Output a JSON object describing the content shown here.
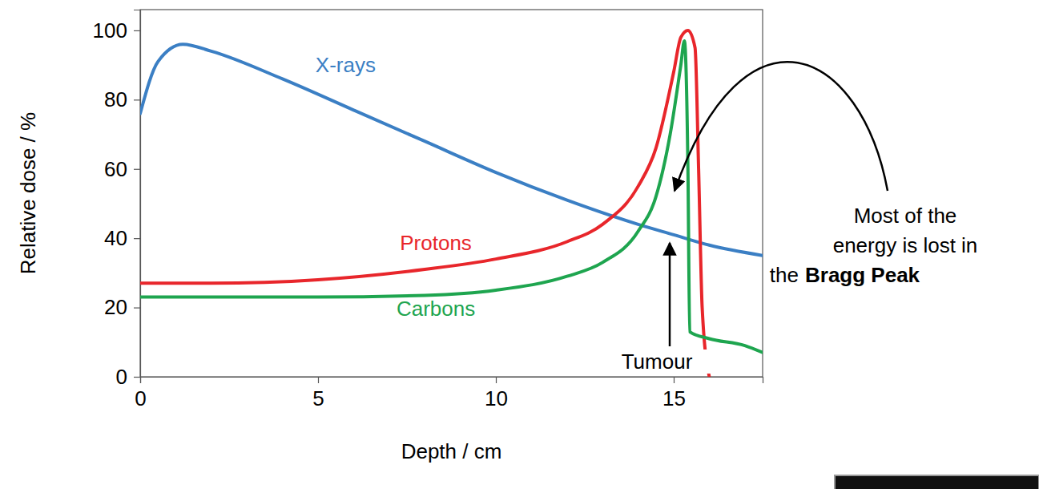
{
  "chart_data": {
    "type": "line",
    "x_label": "Depth / cm",
    "y_label": "Relative dose / %",
    "xlim": [
      0,
      17.5
    ],
    "xticks": [
      0,
      5,
      10,
      15
    ],
    "ylim": [
      0,
      106
    ],
    "yticks": [
      0,
      20,
      40,
      60,
      80,
      100
    ],
    "grid": false,
    "series": [
      {
        "name": "X-rays",
        "color": "#3b7fc4",
        "x": [
          0,
          0.5,
          1.2,
          2,
          4,
          6,
          8,
          10,
          12,
          14,
          15,
          16,
          17.5
        ],
        "values": [
          76,
          91,
          96,
          94,
          86,
          77,
          68,
          59,
          51,
          44,
          41,
          38,
          35
        ]
      },
      {
        "name": "Protons",
        "color": "#e8262b",
        "x": [
          0,
          2,
          5,
          8,
          10,
          12,
          13,
          14,
          14.5,
          15,
          15.2,
          15.4,
          15.6,
          15.7,
          15.8,
          16
        ],
        "values": [
          27,
          27,
          28,
          31,
          34,
          39,
          44,
          55,
          66,
          88,
          98,
          100,
          95,
          60,
          20,
          0
        ]
      },
      {
        "name": "Carbons",
        "color": "#1ea54f",
        "x": [
          0,
          5,
          8,
          10,
          12,
          13,
          14,
          14.5,
          14.9,
          15.2,
          15.3,
          15.4,
          15.45,
          16,
          17,
          17.5
        ],
        "values": [
          23,
          23,
          23.5,
          25,
          29,
          33,
          42,
          52,
          70,
          90,
          97,
          60,
          13,
          11,
          9,
          7
        ]
      }
    ],
    "annotations": [
      {
        "text": "Tumour"
      },
      {
        "text_lines": [
          "Most of the",
          "energy is lost in",
          "the"
        ],
        "bold": "Bragg Peak"
      }
    ]
  }
}
